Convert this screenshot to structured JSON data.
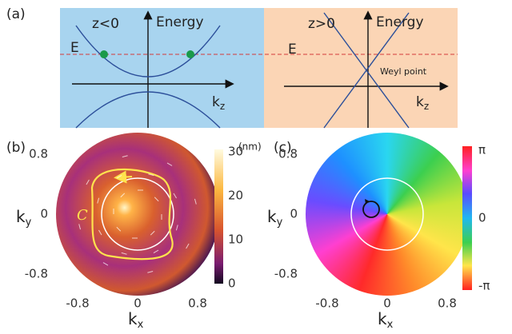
{
  "panel_a": {
    "label": "(a)",
    "left": {
      "region": "z<0",
      "axis_label": "Energy",
      "energy_label": "E",
      "k_axis": {
        "base": "k",
        "sub": "z"
      }
    },
    "right": {
      "region": "z>0",
      "axis_label": "Energy",
      "energy_label": "E",
      "k_axis": {
        "base": "k",
        "sub": "z"
      },
      "annotation": "Weyl point"
    }
  },
  "panel_b": {
    "label": "(b)",
    "y_axis": {
      "base": "k",
      "sub": "y"
    },
    "x_axis": {
      "base": "k",
      "sub": "x"
    },
    "yticks": [
      0.8,
      0,
      -0.8
    ],
    "xticks": [
      -0.8,
      0,
      0.8
    ],
    "loop_label": "C",
    "colorbar": {
      "unit": "(nm)",
      "ticks": [
        30,
        20,
        10,
        0
      ]
    }
  },
  "panel_c": {
    "label": "(c)",
    "y_axis": {
      "base": "k",
      "sub": "y"
    },
    "x_axis": {
      "base": "k",
      "sub": "x"
    },
    "yticks": [
      0.8,
      0,
      -0.8
    ],
    "xticks": [
      -0.8,
      0,
      0.8
    ],
    "colorbar": {
      "ticks": [
        "π",
        "0",
        "-π"
      ]
    }
  }
}
